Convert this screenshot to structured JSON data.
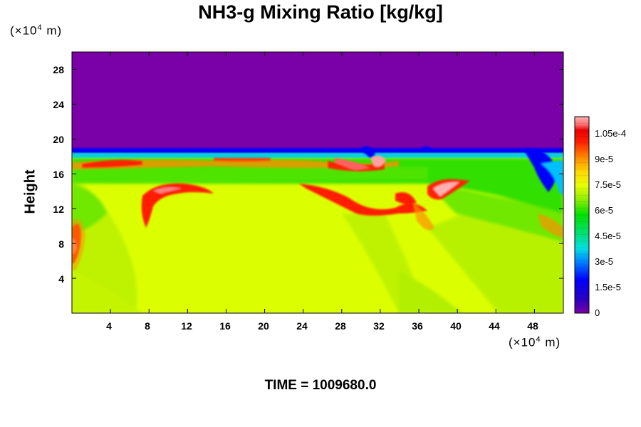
{
  "chart_data": {
    "type": "heatmap",
    "title": "NH3-g Mixing Ratio [kg/kg]",
    "ylabel": "Height",
    "y_unit_prefix": "(×10",
    "y_unit_exp": "4",
    "y_unit_suffix": " m)",
    "x_unit_prefix": "(×10",
    "x_unit_exp": "4",
    "x_unit_suffix": " m)",
    "xlim": [
      0,
      51
    ],
    "ylim": [
      0,
      30
    ],
    "x_ticks": [
      "4",
      "8",
      "12",
      "16",
      "20",
      "24",
      "28",
      "32",
      "36",
      "40",
      "44",
      "48"
    ],
    "y_ticks": [
      "4",
      "8",
      "12",
      "16",
      "20",
      "24",
      "28"
    ],
    "colorbar": {
      "range": [
        0,
        0.000115
      ],
      "tick_labels": [
        "0",
        "1.5e-5",
        "3e-5",
        "4.5e-5",
        "6e-5",
        "7.5e-5",
        "9e-5",
        "1.05e-4"
      ]
    },
    "footer": "TIME = 1009680.0",
    "field_description": {
      "upper_layer": {
        "height_range": [
          19,
          30
        ],
        "value": 0
      },
      "tropopause_edge": {
        "height": 18.5,
        "value_range": [
          5e-06,
          0.000115
        ]
      },
      "mid_band": {
        "height_range": [
          15,
          18
        ],
        "value_range": [
          6e-05,
          0.0001
        ]
      },
      "lower_layer": {
        "height_range": [
          0,
          15
        ],
        "value_range": [
          7e-05,
          8e-05
        ]
      },
      "maxima": [
        {
          "x": 9.5,
          "y": 14,
          "value": 0.000105
        },
        {
          "x": 27,
          "y": 17,
          "value": 0.000115
        },
        {
          "x": 30,
          "y": 12,
          "value": 0.000105
        },
        {
          "x": 38,
          "y": 14,
          "value": 0.000115
        },
        {
          "x": 1,
          "y": 9,
          "value": 0.0001
        }
      ]
    }
  }
}
